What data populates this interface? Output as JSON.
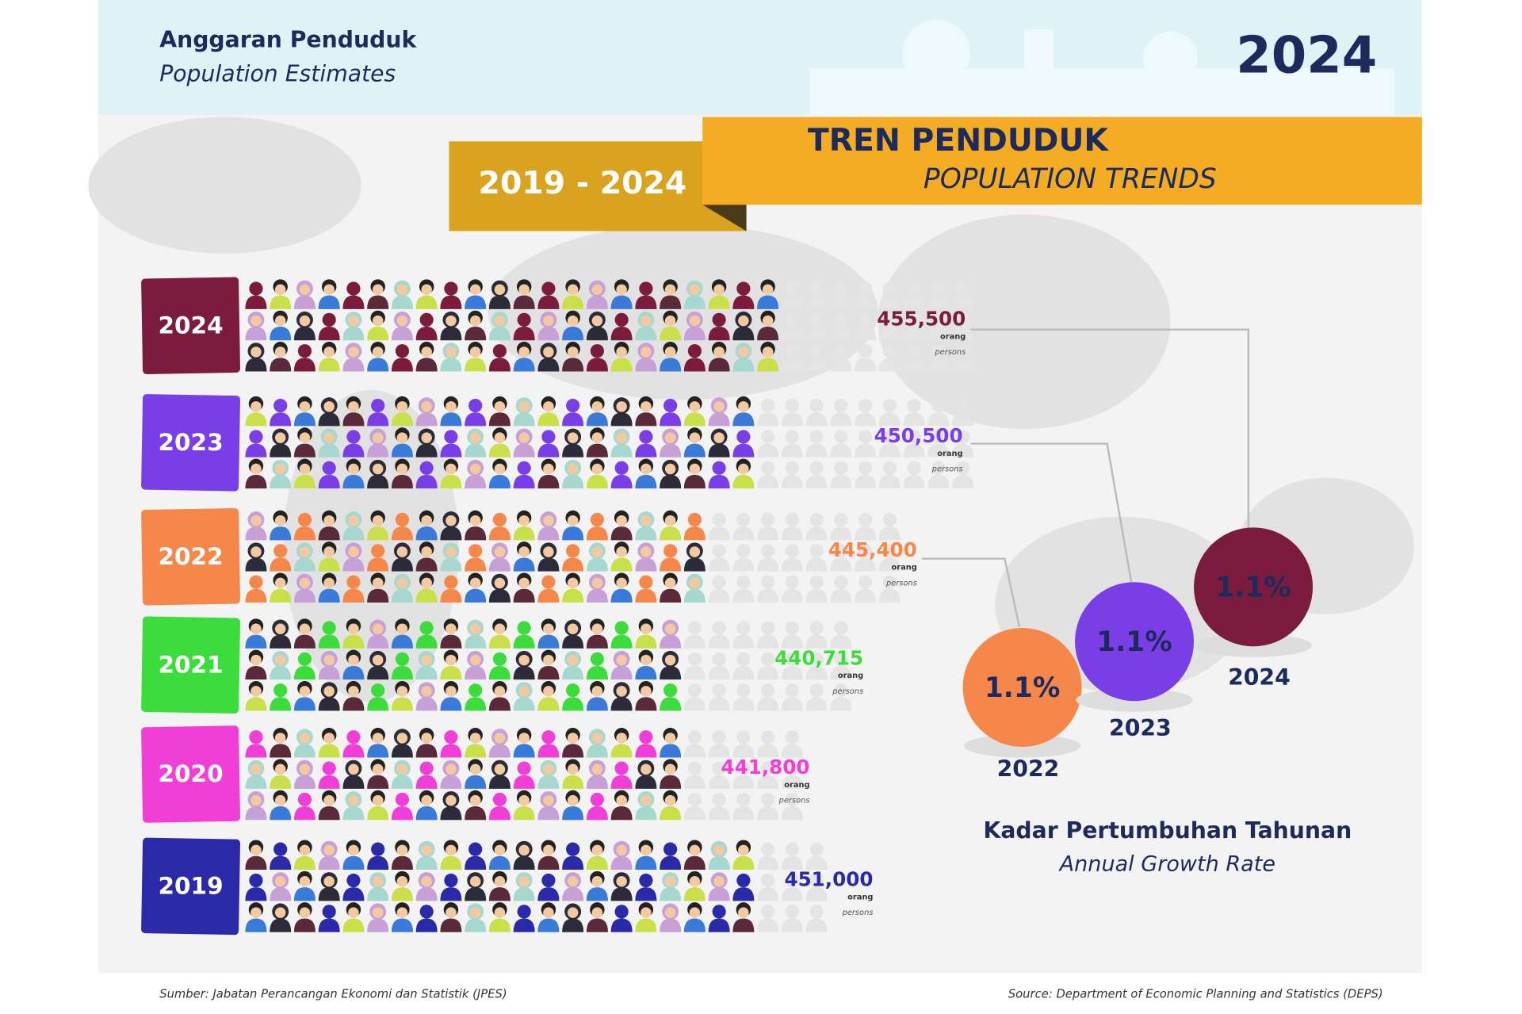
{
  "header": {
    "title": "Anggaran Penduduk",
    "subtitle": "Population Estimates",
    "year": "2024"
  },
  "banner": {
    "range": "2019 - 2024",
    "title": "TREN PENDUDUK",
    "subtitle": "POPULATION TRENDS"
  },
  "rows": [
    {
      "year": "2024",
      "value": "455,500",
      "unit": "orang",
      "unit_en": "persons",
      "color": "#7b1b3e"
    },
    {
      "year": "2023",
      "value": "450,500",
      "unit": "orang",
      "unit_en": "persons",
      "color": "#7a3ee6"
    },
    {
      "year": "2022",
      "value": "445,400",
      "unit": "orang",
      "unit_en": "persons",
      "color": "#f5874a"
    },
    {
      "year": "2021",
      "value": "440,715",
      "unit": "orang",
      "unit_en": "persons",
      "color": "#3ddc3d"
    },
    {
      "year": "2020",
      "value": "441,800",
      "unit": "orang",
      "unit_en": "persons",
      "color": "#f03fd6"
    },
    {
      "year": "2019",
      "value": "451,000",
      "unit": "orang",
      "unit_en": "persons",
      "color": "#2a2aa8"
    }
  ],
  "growth": {
    "title": "Kadar Pertumbuhan Tahunan",
    "subtitle": "Annual Growth Rate",
    "circles": [
      {
        "year": "2022",
        "rate": "1.1%",
        "color": "#f5874a"
      },
      {
        "year": "2023",
        "rate": "1.1%",
        "color": "#7a3ee6"
      },
      {
        "year": "2024",
        "rate": "1.1%",
        "color": "#7b1b3e"
      }
    ]
  },
  "footer": {
    "source_ms": "Sumber: Jabatan Perancangan Ekonomi dan Statistik (JPES)",
    "source_en": "Source: Department of Economic Planning and Statistics (DEPS)"
  }
}
